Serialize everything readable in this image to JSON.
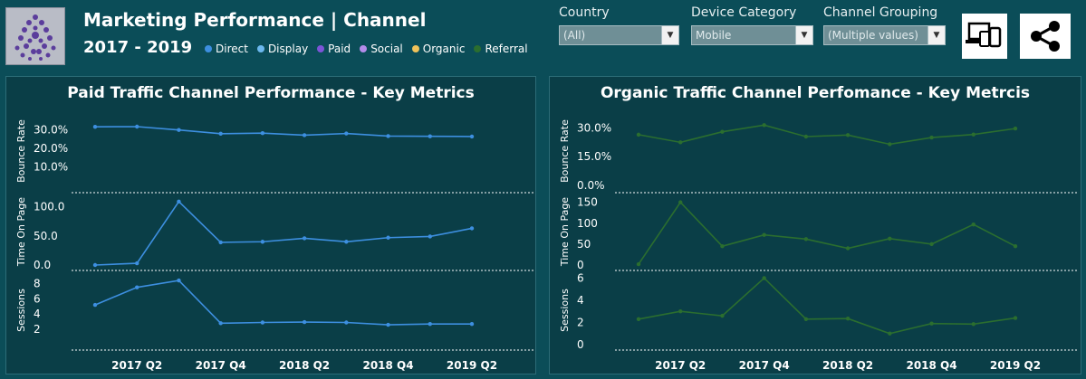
{
  "header": {
    "title": "Marketing Performance | Channel",
    "subtitle": "2017 - 2019",
    "legend": [
      {
        "label": "Direct",
        "color": "#3d8fe0"
      },
      {
        "label": "Display",
        "color": "#6cb8ee"
      },
      {
        "label": "Paid",
        "color": "#7d55d8"
      },
      {
        "label": "Social",
        "color": "#b48cea"
      },
      {
        "label": "Organic",
        "color": "#f0c25a"
      },
      {
        "label": "Referral",
        "color": "#2b6e2f"
      }
    ]
  },
  "filters": {
    "country": {
      "label": "Country",
      "value": "(All)"
    },
    "device": {
      "label": "Device Category",
      "value": "Mobile"
    },
    "channel": {
      "label": "Channel Grouping",
      "value": "(Multiple values)"
    }
  },
  "icons": {
    "device": "devices-icon",
    "share": "share-icon"
  },
  "panels": {
    "paid": {
      "title": "Paid Traffic Channel Performance - Key Metrics"
    },
    "organic": {
      "title": "Organic Traffic Channel Perfomance - Key Metrcis"
    }
  },
  "chart_data": [
    {
      "type": "line",
      "title": "Paid Traffic Channel Performance - Key Metrics",
      "color": "#3d8fe0",
      "x": [
        "2017 Q1",
        "2017 Q2",
        "2017 Q3",
        "2017 Q4",
        "2018 Q1",
        "2018 Q2",
        "2018 Q3",
        "2018 Q4",
        "2019 Q1",
        "2019 Q2"
      ],
      "x_tick_labels": [
        "2017 Q2",
        "2017 Q4",
        "2018 Q2",
        "2018 Q4",
        "2019 Q2"
      ],
      "panes": [
        {
          "ylabel": "Bounce Rate",
          "ylim": [
            0,
            35
          ],
          "ticks": [
            10,
            20,
            30
          ],
          "tick_labels": [
            "10.0%",
            "20.0%",
            "30.0%"
          ],
          "values": [
            31.5,
            31.6,
            29.8,
            27.8,
            28.1,
            27.0,
            27.9,
            26.5,
            26.4,
            26.3
          ]
        },
        {
          "ylabel": "Time On Page",
          "ylim": [
            0,
            115
          ],
          "ticks": [
            0,
            50,
            100
          ],
          "tick_labels": [
            "0.0",
            "50.0",
            "100.0"
          ],
          "values": [
            0,
            3,
            109,
            39,
            40,
            46,
            40,
            47,
            49,
            63
          ]
        },
        {
          "ylabel": "Sessions",
          "ylim": [
            0,
            9
          ],
          "ticks": [
            2,
            4,
            6,
            8
          ],
          "tick_labels": [
            "2",
            "4",
            "6",
            "8"
          ],
          "values": [
            5.2,
            7.5,
            8.4,
            2.8,
            2.9,
            2.95,
            2.9,
            2.6,
            2.7,
            2.7
          ]
        }
      ]
    },
    {
      "type": "line",
      "title": "Organic Traffic Channel Perfomance - Key Metrcis",
      "color": "#2b6e2f",
      "x": [
        "2017 Q1",
        "2017 Q2",
        "2017 Q3",
        "2017 Q4",
        "2018 Q1",
        "2018 Q2",
        "2018 Q3",
        "2018 Q4",
        "2019 Q1",
        "2019 Q2"
      ],
      "x_tick_labels": [
        "2017 Q2",
        "2017 Q4",
        "2018 Q2",
        "2018 Q4",
        "2019 Q2"
      ],
      "panes": [
        {
          "ylabel": "Bounce Rate",
          "ylim": [
            0,
            34
          ],
          "ticks": [
            0,
            15,
            30
          ],
          "tick_labels": [
            "0.0%",
            "15.0%",
            "30.0%"
          ],
          "values": [
            26.5,
            22.5,
            28.0,
            31.5,
            25.5,
            26.3,
            21.5,
            25.0,
            26.6,
            29.7
          ]
        },
        {
          "ylabel": "Time On Page",
          "ylim": [
            0,
            160
          ],
          "ticks": [
            0,
            50,
            100,
            150
          ],
          "tick_labels": [
            "0",
            "50",
            "100",
            "150"
          ],
          "values": [
            2,
            150,
            45,
            72,
            62,
            40,
            63,
            50,
            97,
            45
          ]
        },
        {
          "ylabel": "Sessions",
          "ylim": [
            0,
            6.2
          ],
          "ticks": [
            0,
            2,
            4,
            6
          ],
          "tick_labels": [
            "0",
            "2",
            "4",
            "6"
          ],
          "values": [
            2.3,
            3.0,
            2.6,
            6.0,
            2.3,
            2.35,
            1.0,
            1.9,
            1.85,
            2.4
          ]
        }
      ]
    }
  ]
}
